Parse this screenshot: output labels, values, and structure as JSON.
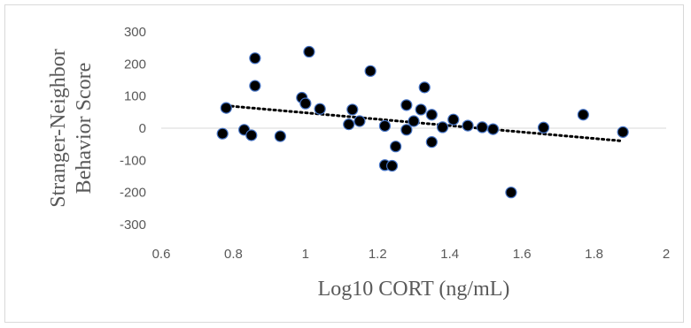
{
  "chart_data": {
    "type": "scatter",
    "title": "",
    "xlabel": "Log10 CORT (ng/mL)",
    "ylabel_lines": [
      "Stranger-Neighbor",
      "Behavior Score"
    ],
    "xlim": [
      0.6,
      2
    ],
    "ylim": [
      -300,
      300
    ],
    "x_ticks": [
      "0.6",
      "0.8",
      "1",
      "1.2",
      "1.4",
      "1.6",
      "1.8",
      "2"
    ],
    "y_ticks": [
      "300",
      "200",
      "100",
      "0",
      "-100",
      "-200",
      "-300"
    ],
    "grid": false,
    "legend": "none",
    "marker_color": "#000000",
    "marker_edge_color": "#4472C4",
    "trendline": {
      "type": "linear",
      "style": "dotted",
      "color": "#000000",
      "x_range": [
        0.78,
        1.88
      ],
      "y_start": 70,
      "y_end": -40
    },
    "points": [
      {
        "x": 0.77,
        "y": -17
      },
      {
        "x": 0.78,
        "y": 63
      },
      {
        "x": 0.83,
        "y": -5
      },
      {
        "x": 0.85,
        "y": -22
      },
      {
        "x": 0.86,
        "y": 218
      },
      {
        "x": 0.86,
        "y": 132
      },
      {
        "x": 0.93,
        "y": -25
      },
      {
        "x": 0.99,
        "y": 95
      },
      {
        "x": 1.0,
        "y": 77
      },
      {
        "x": 1.01,
        "y": 238
      },
      {
        "x": 1.04,
        "y": 60
      },
      {
        "x": 1.12,
        "y": 12
      },
      {
        "x": 1.13,
        "y": 58
      },
      {
        "x": 1.15,
        "y": 22
      },
      {
        "x": 1.18,
        "y": 178
      },
      {
        "x": 1.22,
        "y": -115
      },
      {
        "x": 1.22,
        "y": 7
      },
      {
        "x": 1.24,
        "y": -117
      },
      {
        "x": 1.25,
        "y": -57
      },
      {
        "x": 1.28,
        "y": 72
      },
      {
        "x": 1.28,
        "y": -5
      },
      {
        "x": 1.3,
        "y": 22
      },
      {
        "x": 1.32,
        "y": 58
      },
      {
        "x": 1.33,
        "y": 127
      },
      {
        "x": 1.35,
        "y": 42
      },
      {
        "x": 1.35,
        "y": -43
      },
      {
        "x": 1.38,
        "y": 3
      },
      {
        "x": 1.41,
        "y": 27
      },
      {
        "x": 1.45,
        "y": 8
      },
      {
        "x": 1.49,
        "y": 3
      },
      {
        "x": 1.52,
        "y": -3
      },
      {
        "x": 1.57,
        "y": -200
      },
      {
        "x": 1.66,
        "y": 2
      },
      {
        "x": 1.77,
        "y": 42
      },
      {
        "x": 1.88,
        "y": -12
      }
    ]
  }
}
